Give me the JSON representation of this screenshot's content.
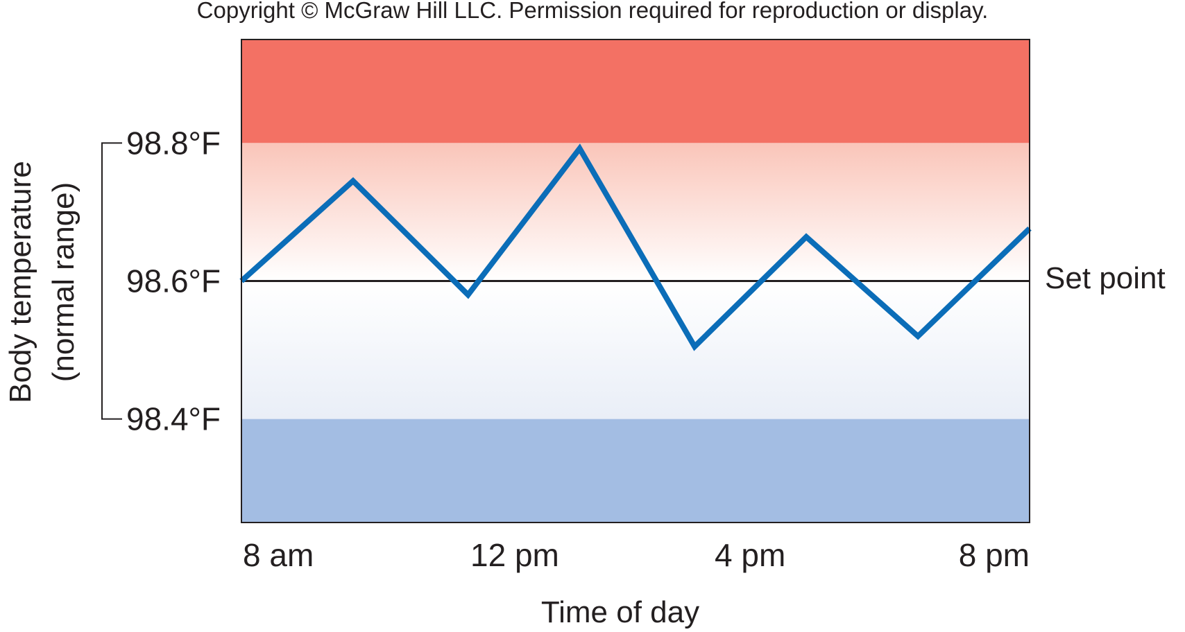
{
  "copyright": "Copyright © McGraw Hill LLC. Permission required for reproduction or display.",
  "chart_data": {
    "type": "line",
    "xlabel": "Time of day",
    "ylabel": [
      "Body temperature",
      "(normal range)"
    ],
    "x_tick_labels": [
      "8 am",
      "12 pm",
      "4 pm",
      "8 pm"
    ],
    "y_tick_labels": [
      "98.8°F",
      "98.6°F",
      "98.4°F"
    ],
    "y_ticks": [
      98.8,
      98.6,
      98.4
    ],
    "xlim": [
      8,
      20
    ],
    "ylim": [
      98.25,
      98.95
    ],
    "set_point": {
      "label": "Set point",
      "value": 98.6
    },
    "bands": {
      "above": {
        "from": 98.8,
        "color": "#f37164"
      },
      "normal": {
        "from": 98.4,
        "to": 98.8,
        "top_color": "#fac5b9",
        "bottom_color": "#e9eef7"
      },
      "below": {
        "to": 98.4,
        "color": "#a3bde3"
      }
    },
    "series": [
      {
        "color": "#0b6db8",
        "points": [
          {
            "x": 8.0,
            "y": 98.6
          },
          {
            "x": 9.7,
            "y": 98.745
          },
          {
            "x": 11.45,
            "y": 98.58
          },
          {
            "x": 13.15,
            "y": 98.792
          },
          {
            "x": 14.9,
            "y": 98.505
          },
          {
            "x": 16.6,
            "y": 98.664
          },
          {
            "x": 18.3,
            "y": 98.52
          },
          {
            "x": 20.0,
            "y": 98.676
          }
        ]
      }
    ],
    "grid": false
  }
}
